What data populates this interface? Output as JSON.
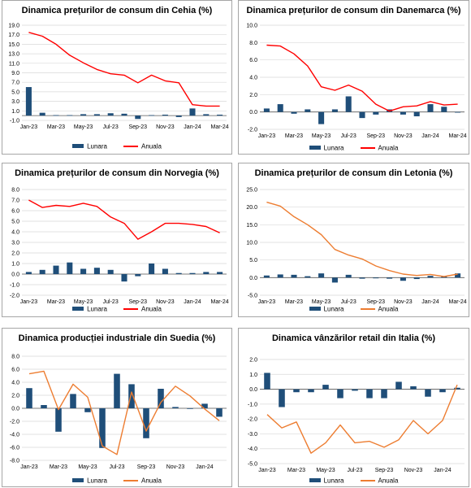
{
  "legend": {
    "bar_label": "Lunara",
    "line_label": "Anuala"
  },
  "colors": {
    "bar": "#1f4e79",
    "line": "#ff0000",
    "line_alt": "#ed7d31",
    "grid": "#d9d9d9",
    "axis": "#595959"
  },
  "chart_data": [
    {
      "id": "cz",
      "type": "bar",
      "title": "Dinamica prețurilor de consum din Cehia (%)",
      "xlabel": "",
      "ylabel": "",
      "grid": true,
      "legend_position": "bottom",
      "line_color_key": "line",
      "ylim": [
        -1.0,
        19.0
      ],
      "yticks": [
        "-1.0",
        "1.0",
        "3.0",
        "5.0",
        "7.0",
        "9.0",
        "11.0",
        "13.0",
        "15.0",
        "17.0",
        "19.0"
      ],
      "categories": [
        "Jan-23",
        "Feb-23",
        "Mar-23",
        "Apr-23",
        "May-23",
        "Jun-23",
        "Jul-23",
        "Aug-23",
        "Sep-23",
        "Oct-23",
        "Nov-23",
        "Dec-23",
        "Jan-24",
        "Feb-24",
        "Mar-24"
      ],
      "xtick_labels": [
        "Jan-23",
        "",
        "Mar-23",
        "",
        "May-23",
        "",
        "Jul-23",
        "",
        "Sep-23",
        "",
        "Nov-23",
        "",
        "Jan-24",
        "",
        "Mar-24"
      ],
      "series": [
        {
          "name": "Lunara",
          "kind": "bar",
          "values": [
            6.0,
            0.6,
            0.1,
            0.1,
            0.3,
            0.3,
            0.5,
            0.4,
            -0.7,
            0.1,
            0.2,
            -0.3,
            1.5,
            0.3,
            0.2
          ]
        },
        {
          "name": "Anuala",
          "kind": "line",
          "values": [
            17.5,
            16.7,
            15.0,
            12.7,
            11.1,
            9.7,
            8.8,
            8.5,
            6.9,
            8.5,
            7.3,
            6.9,
            2.3,
            2.0,
            2.0
          ]
        }
      ]
    },
    {
      "id": "dk",
      "type": "bar",
      "title": "Dinamica prețurilor de consum din Danemarca (%)",
      "xlabel": "",
      "ylabel": "",
      "grid": true,
      "legend_position": "bottom",
      "line_color_key": "line",
      "ylim": [
        -2.0,
        10.0
      ],
      "yticks": [
        "-2.0",
        "0.0",
        "2.0",
        "4.0",
        "6.0",
        "8.0",
        "10.0"
      ],
      "categories": [
        "Jan-23",
        "Feb-23",
        "Mar-23",
        "Apr-23",
        "May-23",
        "Jun-23",
        "Jul-23",
        "Aug-23",
        "Sep-23",
        "Oct-23",
        "Nov-23",
        "Dec-23",
        "Jan-24",
        "Feb-24",
        "Mar-24"
      ],
      "xtick_labels": [
        "Jan-23",
        "",
        "Mar-23",
        "",
        "May-23",
        "",
        "Jul-23",
        "",
        "Sep-23",
        "",
        "Nov-23",
        "",
        "Jan-24",
        "",
        "Mar-24"
      ],
      "series": [
        {
          "name": "Lunara",
          "kind": "bar",
          "values": [
            0.4,
            0.9,
            -0.2,
            0.3,
            -1.4,
            0.3,
            1.8,
            -0.7,
            -0.3,
            0.3,
            -0.3,
            -0.5,
            0.9,
            0.6,
            0.0
          ]
        },
        {
          "name": "Anuala",
          "kind": "line",
          "values": [
            7.7,
            7.6,
            6.7,
            5.3,
            2.9,
            2.5,
            3.1,
            2.4,
            0.9,
            0.1,
            0.6,
            0.7,
            1.2,
            0.8,
            0.9
          ]
        }
      ]
    },
    {
      "id": "no",
      "type": "bar",
      "title": "Dinamica prețurilor de consum din Norvegia (%)",
      "xlabel": "",
      "ylabel": "",
      "grid": true,
      "legend_position": "bottom",
      "line_color_key": "line",
      "ylim": [
        -2.0,
        8.0
      ],
      "yticks": [
        "-2.0",
        "-1.0",
        "0.0",
        "1.0",
        "2.0",
        "3.0",
        "4.0",
        "5.0",
        "6.0",
        "7.0",
        "8.0"
      ],
      "categories": [
        "Jan-23",
        "Feb-23",
        "Mar-23",
        "Apr-23",
        "May-23",
        "Jun-23",
        "Jul-23",
        "Aug-23",
        "Sep-23",
        "Oct-23",
        "Nov-23",
        "Dec-23",
        "Jan-24",
        "Feb-24",
        "Mar-24"
      ],
      "xtick_labels": [
        "Jan-23",
        "",
        "Mar-23",
        "",
        "May-23",
        "",
        "Jul-23",
        "",
        "Sep-23",
        "",
        "Nov-23",
        "",
        "Jan-24",
        "",
        "Mar-24"
      ],
      "series": [
        {
          "name": "Lunara",
          "kind": "bar",
          "values": [
            0.2,
            0.4,
            0.8,
            1.1,
            0.5,
            0.6,
            0.4,
            -0.7,
            -0.2,
            1.0,
            0.5,
            0.1,
            0.1,
            0.2,
            0.2
          ]
        },
        {
          "name": "Anuala",
          "kind": "line",
          "values": [
            7.0,
            6.3,
            6.5,
            6.4,
            6.7,
            6.4,
            5.4,
            4.8,
            3.3,
            4.0,
            4.8,
            4.8,
            4.7,
            4.5,
            3.9
          ]
        }
      ]
    },
    {
      "id": "lv",
      "type": "bar",
      "title": "Dinamica prețurilor de consum din Letonia (%)",
      "xlabel": "",
      "ylabel": "",
      "grid": true,
      "legend_position": "bottom",
      "line_color_key": "line_alt",
      "ylim": [
        -5.0,
        25.0
      ],
      "yticks": [
        "-5.0",
        "0.0",
        "5.0",
        "10.0",
        "15.0",
        "20.0",
        "25.0"
      ],
      "categories": [
        "Jan-23",
        "Feb-23",
        "Mar-23",
        "Apr-23",
        "May-23",
        "Jun-23",
        "Jul-23",
        "Aug-23",
        "Sep-23",
        "Oct-23",
        "Nov-23",
        "Dec-23",
        "Jan-24",
        "Feb-24",
        "Mar-24"
      ],
      "xtick_labels": [
        "Jan-23",
        "",
        "Mar-23",
        "",
        "May-23",
        "",
        "Jul-23",
        "",
        "Sep-23",
        "",
        "Nov-23",
        "",
        "Jan-24",
        "",
        "Mar-24"
      ],
      "series": [
        {
          "name": "Lunara",
          "kind": "bar",
          "values": [
            0.6,
            0.9,
            0.8,
            0.4,
            1.2,
            -1.4,
            0.8,
            -0.3,
            -0.2,
            -0.3,
            -0.9,
            -0.4,
            0.5,
            0.4,
            1.2
          ]
        },
        {
          "name": "Anuala",
          "kind": "line",
          "values": [
            21.4,
            20.3,
            17.3,
            15.0,
            12.2,
            8.0,
            6.4,
            5.3,
            3.3,
            2.0,
            1.0,
            0.6,
            0.9,
            0.3,
            1.0
          ]
        }
      ]
    },
    {
      "id": "se",
      "type": "bar",
      "title": "Dinamica producției industriale din Suedia (%)",
      "xlabel": "",
      "ylabel": "",
      "grid": true,
      "legend_position": "bottom",
      "line_color_key": "line_alt",
      "ylim": [
        -8.0,
        8.0
      ],
      "yticks": [
        "-8.0",
        "-6.0",
        "-4.0",
        "-2.0",
        "0.0",
        "2.0",
        "4.0",
        "6.0",
        "8.0"
      ],
      "categories": [
        "Jan-23",
        "Feb-23",
        "Mar-23",
        "Apr-23",
        "May-23",
        "Jun-23",
        "Jul-23",
        "Aug-23",
        "Sep-23",
        "Oct-23",
        "Nov-23",
        "Dec-23",
        "Jan-24",
        "Feb-24"
      ],
      "xtick_labels": [
        "Jan-23",
        "",
        "Mar-23",
        "",
        "May-23",
        "",
        "Jul-23",
        "",
        "Sep-23",
        "",
        "Nov-23",
        "",
        "Jan-24",
        ""
      ],
      "series": [
        {
          "name": "Lunara",
          "kind": "bar",
          "values": [
            3.1,
            0.5,
            -3.6,
            2.2,
            -0.6,
            -6.1,
            5.3,
            3.7,
            -4.6,
            3.0,
            0.2,
            -0.1,
            0.7,
            -1.3
          ]
        },
        {
          "name": "Anuala",
          "kind": "line",
          "values": [
            5.3,
            5.7,
            -0.2,
            3.7,
            1.7,
            -5.8,
            -7.1,
            2.5,
            -3.5,
            0.9,
            3.4,
            1.9,
            -0.1,
            -1.9
          ]
        }
      ]
    },
    {
      "id": "it",
      "type": "bar",
      "title": "Dinamica vânzărilor retail din Italia (%)",
      "xlabel": "",
      "ylabel": "",
      "grid": true,
      "legend_position": "bottom",
      "line_color_key": "line_alt",
      "ylim": [
        -5.0,
        2.0
      ],
      "yticks": [
        "-5.0",
        "-4.0",
        "-3.0",
        "-2.0",
        "-1.0",
        "0.0",
        "1.0",
        "2.0"
      ],
      "categories": [
        "Jan-23",
        "Feb-23",
        "Mar-23",
        "Apr-23",
        "May-23",
        "Jun-23",
        "Jul-23",
        "Aug-23",
        "Sep-23",
        "Oct-23",
        "Nov-23",
        "Dec-23",
        "Jan-24",
        "Feb-24"
      ],
      "xtick_labels": [
        "Jan-23",
        "",
        "Mar-23",
        "",
        "May-23",
        "",
        "Jul-23",
        "",
        "Sep-23",
        "",
        "Nov-23",
        "",
        "Jan-24",
        ""
      ],
      "series": [
        {
          "name": "Lunara",
          "kind": "bar",
          "values": [
            1.1,
            -1.2,
            -0.2,
            -0.2,
            0.3,
            -0.6,
            -0.1,
            -0.6,
            -0.6,
            0.5,
            0.2,
            -0.5,
            -0.2,
            0.1
          ]
        },
        {
          "name": "Anuala",
          "kind": "line",
          "values": [
            -1.7,
            -2.6,
            -2.2,
            -4.3,
            -3.6,
            -2.4,
            -3.6,
            -3.5,
            -3.9,
            -3.4,
            -2.1,
            -3.0,
            -2.1,
            0.3
          ]
        }
      ]
    }
  ]
}
